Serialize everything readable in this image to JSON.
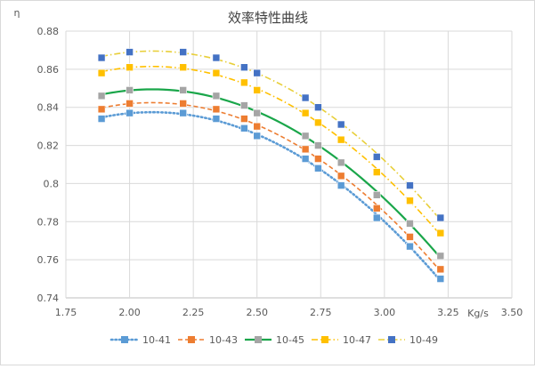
{
  "chart_data": {
    "type": "scatter",
    "title": "效率特性曲线",
    "ylabel": "η",
    "xlabel": "Kg/s",
    "xlim": [
      1.75,
      3.5
    ],
    "ylim": [
      0.74,
      0.88
    ],
    "x_ticks": [
      "1.75",
      "2.00",
      "2.25",
      "2.50",
      "2.75",
      "3.00",
      "3.25",
      "3.50"
    ],
    "y_ticks": [
      "0.74",
      "0.76",
      "0.78",
      "0.8",
      "0.82",
      "0.84",
      "0.86",
      "0.88"
    ],
    "grid": true,
    "legend_position": "bottom",
    "x": [
      1.89,
      2.0,
      2.21,
      2.34,
      2.45,
      2.5,
      2.69,
      2.74,
      2.83,
      2.97,
      3.1,
      3.22
    ],
    "series": [
      {
        "name": "10-41",
        "color": "#5b9bd5",
        "line_style": "dotted",
        "values": [
          0.834,
          0.837,
          0.837,
          0.834,
          0.829,
          0.825,
          0.813,
          0.808,
          0.799,
          0.782,
          0.767,
          0.75
        ]
      },
      {
        "name": "10-43",
        "color": "#ed7d31",
        "line_style": "dashed",
        "values": [
          0.839,
          0.842,
          0.842,
          0.839,
          0.834,
          0.83,
          0.818,
          0.813,
          0.804,
          0.787,
          0.772,
          0.755
        ]
      },
      {
        "name": "10-45",
        "color": "#a5a5a5",
        "line_color": "#1aa64a",
        "line_style": "solid",
        "values": [
          0.846,
          0.849,
          0.849,
          0.846,
          0.841,
          0.837,
          0.825,
          0.82,
          0.811,
          0.794,
          0.779,
          0.762
        ]
      },
      {
        "name": "10-47",
        "color": "#ffc000",
        "line_style": "dash-dot",
        "values": [
          0.858,
          0.861,
          0.861,
          0.858,
          0.853,
          0.849,
          0.837,
          0.832,
          0.823,
          0.806,
          0.791,
          0.774
        ]
      },
      {
        "name": "10-49",
        "color": "#4472c4",
        "line_color": "#e8cf3a",
        "line_style": "dash-dot",
        "values": [
          0.866,
          0.869,
          0.869,
          0.866,
          0.861,
          0.858,
          0.845,
          0.84,
          0.831,
          0.814,
          0.799,
          0.782
        ]
      }
    ]
  }
}
